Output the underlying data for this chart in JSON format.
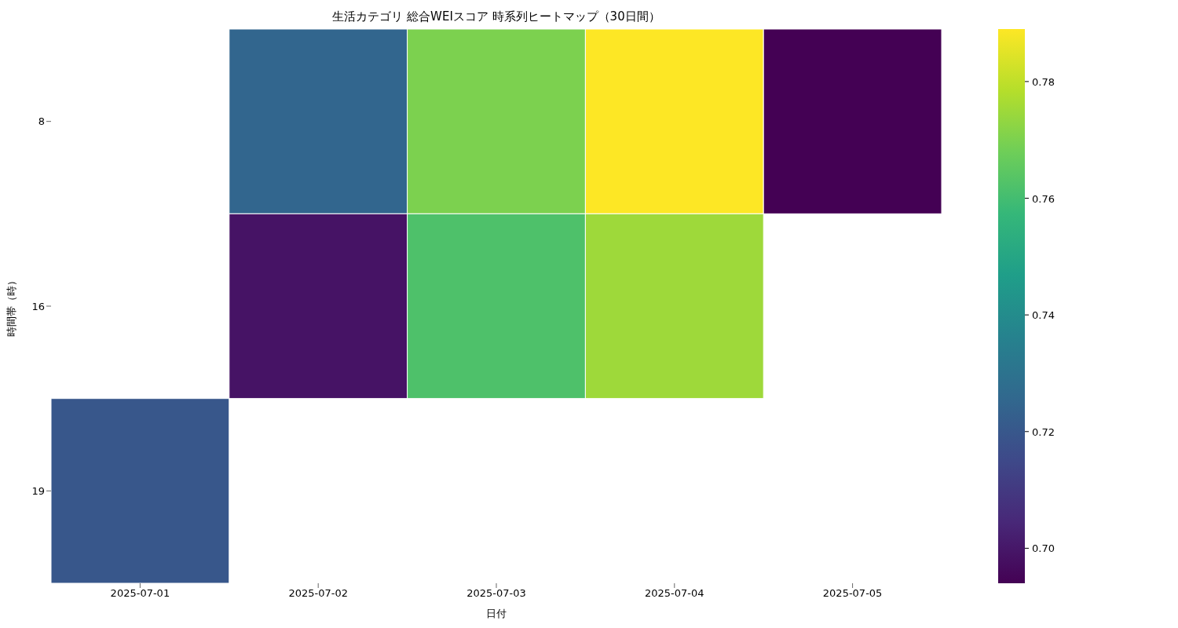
{
  "chart_data": {
    "type": "heatmap",
    "title": "生活カテゴリ 総合WEIスコア 時系列ヒートマップ（30日間）",
    "xlabel": "日付",
    "ylabel": "時間帯（時）",
    "categories": [
      "2025-07-01",
      "2025-07-02",
      "2025-07-03",
      "2025-07-04",
      "2025-07-05"
    ],
    "y_categories": [
      "8",
      "16",
      "19"
    ],
    "cells": [
      [
        null,
        0.725,
        0.77,
        0.789,
        0.694
      ],
      [
        null,
        0.699,
        0.762,
        0.775,
        null
      ],
      [
        0.72,
        null,
        null,
        null,
        null
      ]
    ],
    "clim": [
      0.694,
      0.789
    ],
    "cticks": [
      {
        "value": 0.7,
        "label": "0.70"
      },
      {
        "value": 0.72,
        "label": "0.72"
      },
      {
        "value": 0.74,
        "label": "0.74"
      },
      {
        "value": 0.76,
        "label": "0.76"
      },
      {
        "value": 0.78,
        "label": "0.78"
      }
    ]
  }
}
